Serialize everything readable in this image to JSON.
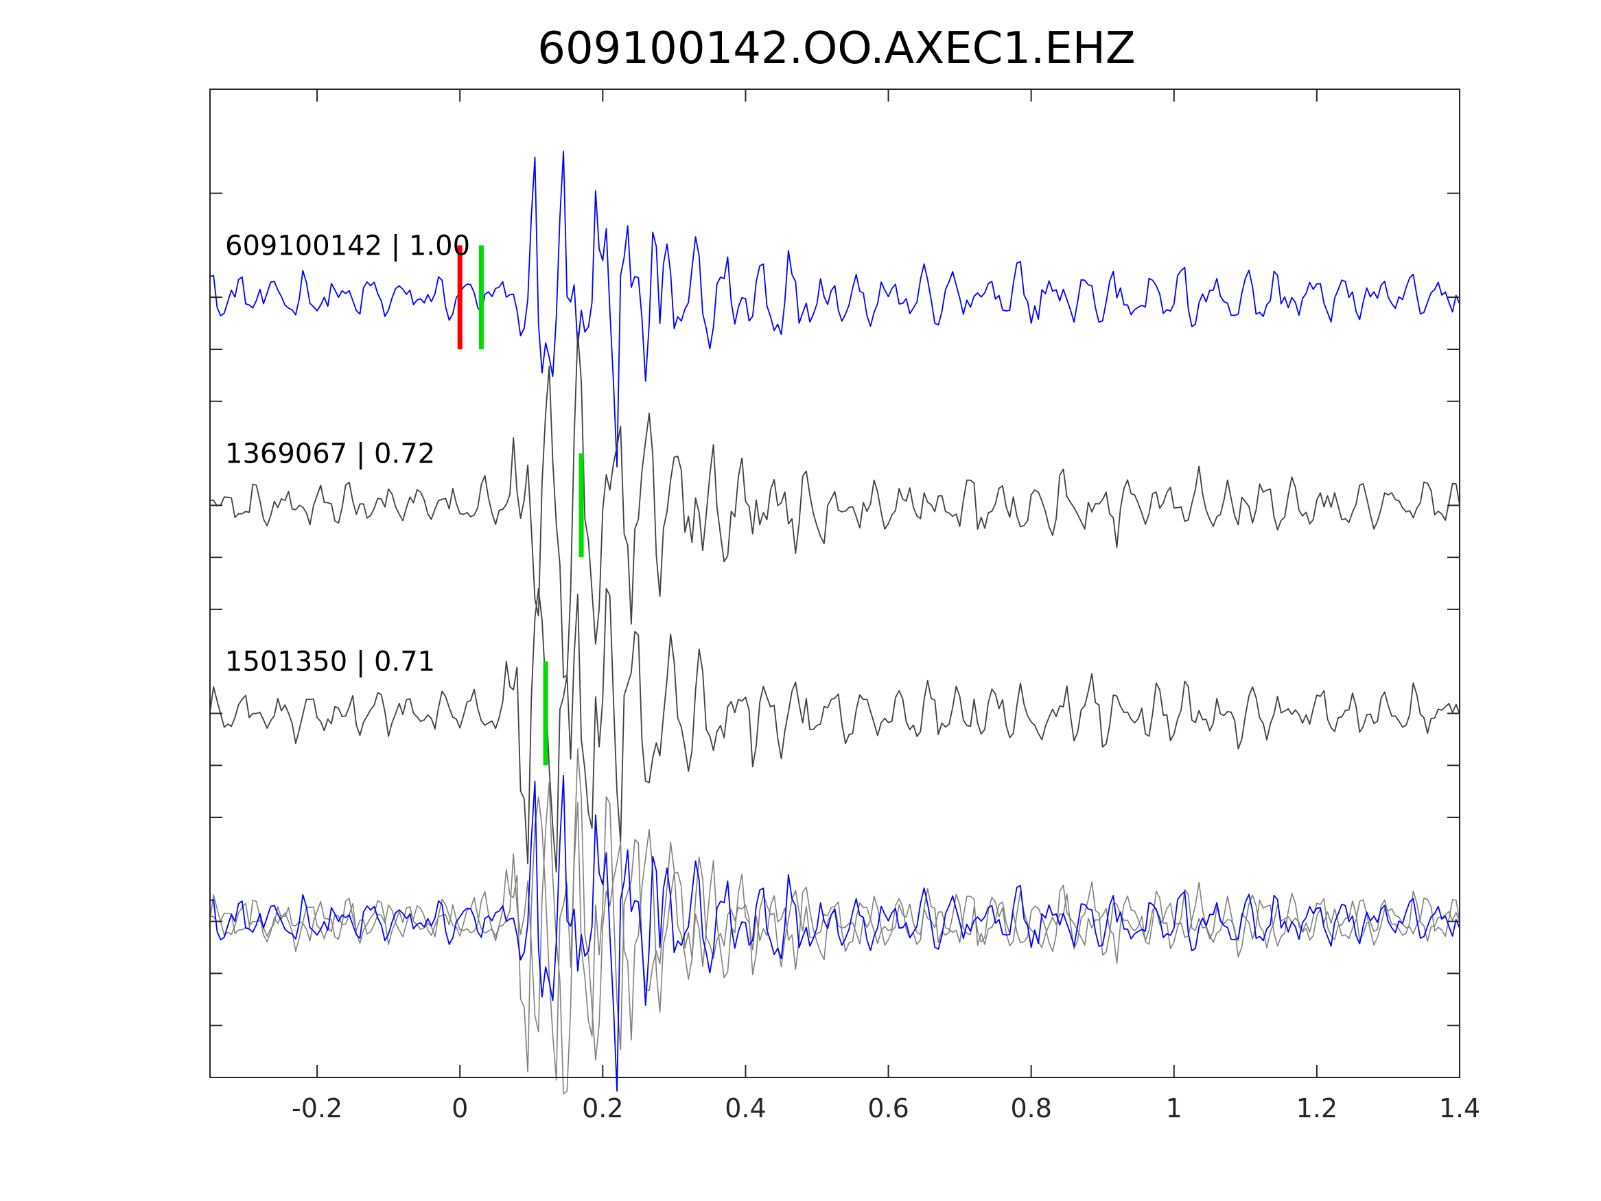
{
  "chart_data": {
    "type": "line",
    "title": "609100142.OO.AXEC1.EHZ",
    "xlabel": "",
    "ylabel": "",
    "xlim": [
      -0.35,
      1.4
    ],
    "ylim": [
      0,
      4.75
    ],
    "x_ticks": [
      -0.2,
      0,
      0.2,
      0.4,
      0.6,
      0.8,
      1,
      1.2,
      1.4
    ],
    "x_tick_labels": [
      "-0.2",
      "0",
      "0.2",
      "0.4",
      "0.6",
      "0.8",
      "1",
      "1.2",
      "1.4"
    ],
    "y_ticks": [
      0.25,
      0.5,
      0.75,
      1.25,
      1.5,
      1.75,
      2.25,
      2.5,
      2.75,
      3.25,
      3.5,
      3.75,
      4.25
    ],
    "y_tick_labels_visible": false,
    "grid": false,
    "sample_interval": 0.005,
    "traces": [
      {
        "id": "609100142",
        "label": "609100142 | 1.00",
        "offset": 3.75,
        "color": "#0000ff",
        "picks": [
          {
            "x": 0.0,
            "color": "#ff0000"
          },
          {
            "x": 0.03,
            "color": "#00dd00"
          }
        ]
      },
      {
        "id": "1369067",
        "label": "1369067 | 0.72",
        "offset": 2.75,
        "color": "#404040",
        "picks": [
          {
            "x": 0.17,
            "color": "#00dd00"
          }
        ]
      },
      {
        "id": "1501350",
        "label": "1501350 | 0.71",
        "offset": 1.75,
        "color": "#404040",
        "picks": [
          {
            "x": 0.12,
            "color": "#00dd00"
          }
        ]
      }
    ],
    "overlay": {
      "offset": 0.75,
      "reference_color": "#0000ff",
      "others_color": "#808080"
    }
  }
}
